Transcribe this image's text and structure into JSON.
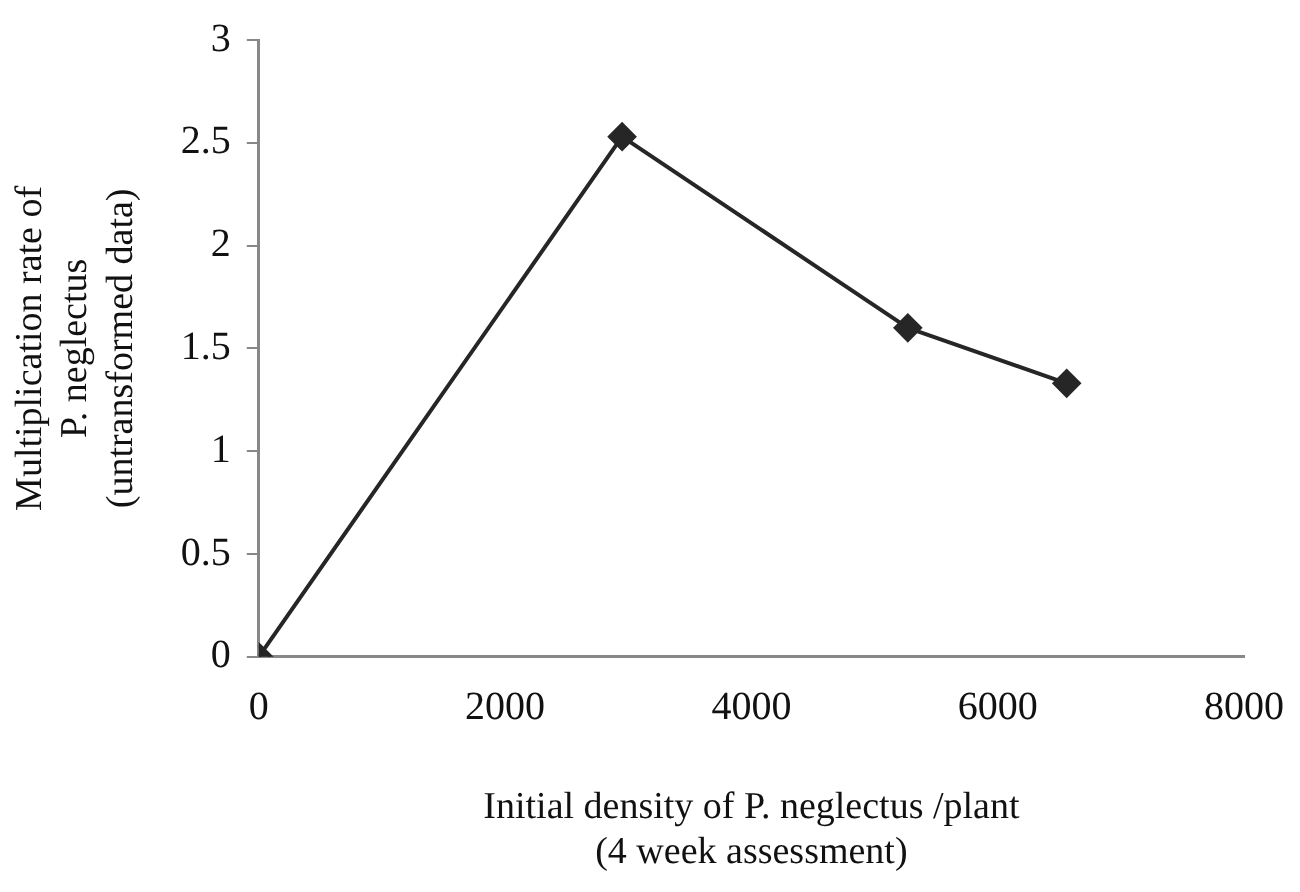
{
  "chart_data": {
    "type": "line",
    "xlabel": "Initial density of P. neglectus /plant\n(4 week assessment)",
    "ylabel": "Multiplication rate of\nP. neglectus\n(untransformed data)",
    "x": [
      0,
      2950,
      5270,
      6560
    ],
    "series": [
      {
        "color": "#262626",
        "values": [
          0,
          2.53,
          1.6,
          1.33
        ]
      }
    ],
    "xlim": [
      0,
      8000
    ],
    "xticks": [
      0,
      2000,
      4000,
      6000,
      8000
    ],
    "ylim": [
      0,
      3
    ],
    "yticks": [
      0,
      0.5,
      1,
      1.5,
      2,
      2.5,
      3
    ],
    "grid": false,
    "legend": false,
    "marker": "diamond",
    "line_style": "solid"
  }
}
